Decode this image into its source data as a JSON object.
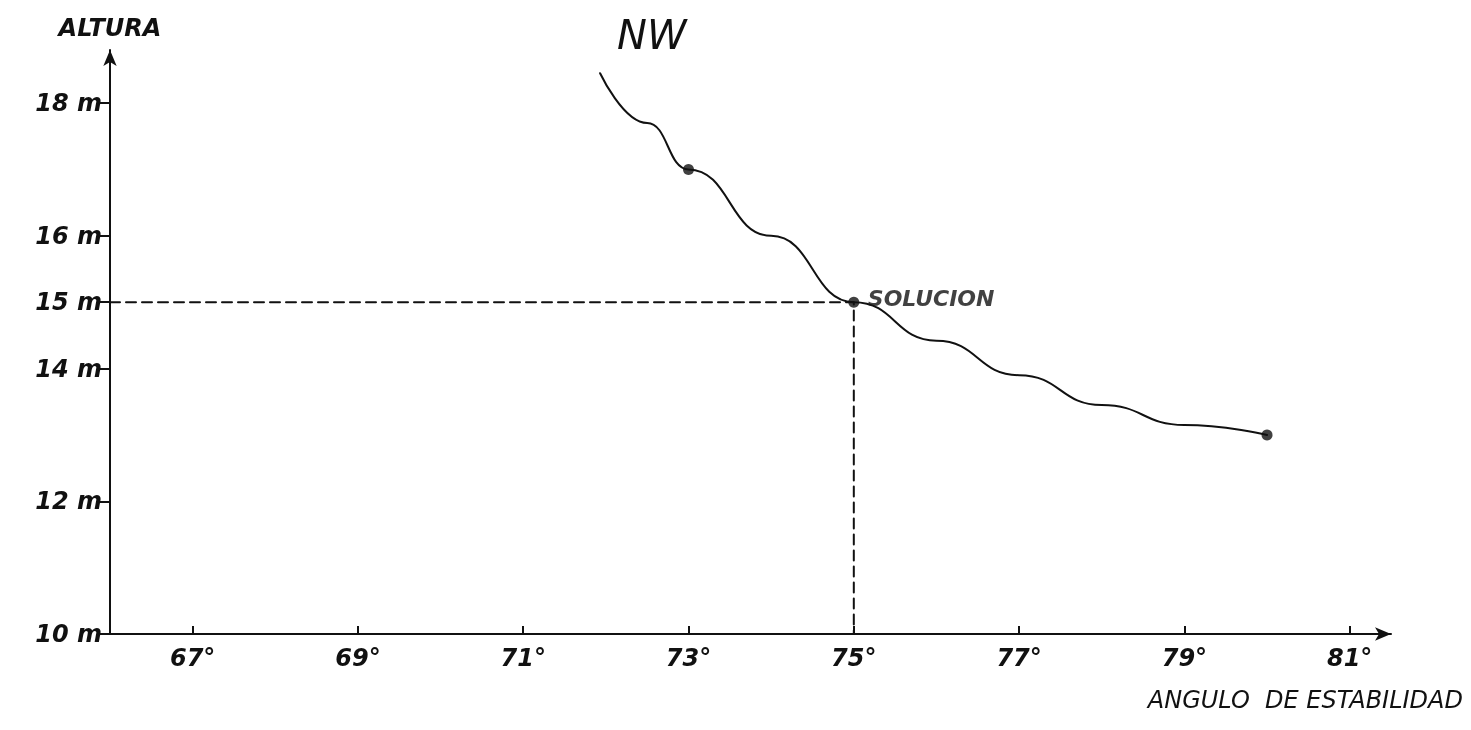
{
  "chart_data": {
    "type": "line",
    "title": "NW",
    "xlabel": "ANGULO  DE ESTABILIDAD",
    "ylabel": "ALTURA",
    "xlim": [
      66,
      81.5
    ],
    "ylim": [
      10,
      18.8
    ],
    "xticks": [
      {
        "value": 67,
        "label": "67°"
      },
      {
        "value": 69,
        "label": "69°"
      },
      {
        "value": 71,
        "label": "71°"
      },
      {
        "value": 73,
        "label": "73°"
      },
      {
        "value": 75,
        "label": "75°"
      },
      {
        "value": 77,
        "label": "77°"
      },
      {
        "value": 79,
        "label": "79°"
      },
      {
        "value": 81,
        "label": "81°"
      }
    ],
    "yticks": [
      {
        "value": 10,
        "label": "10 m"
      },
      {
        "value": 12,
        "label": "12 m"
      },
      {
        "value": 14,
        "label": "14 m"
      },
      {
        "value": 15,
        "label": "15 m"
      },
      {
        "value": 16,
        "label": "16 m"
      },
      {
        "value": 18,
        "label": "18 m"
      }
    ],
    "grid": false,
    "series": [
      {
        "color": "#111111",
        "marker": "none",
        "line_style": "solid",
        "x": [
          71.93,
          72.5,
          73,
          74,
          75,
          76,
          77,
          78,
          79,
          80
        ],
        "values": [
          18.45,
          17.7,
          17.0,
          16.0,
          15.0,
          14.42,
          13.9,
          13.45,
          13.15,
          13.0
        ]
      },
      {
        "type": "scatter",
        "color": "#111111",
        "marker": "circle",
        "x": [
          73,
          75,
          80
        ],
        "values": [
          17.0,
          15.0,
          13.0
        ]
      },
      {
        "type": "line",
        "color": "#111111",
        "marker": "none",
        "line_style": "dashed",
        "x": [
          66,
          75,
          75
        ],
        "values": [
          15,
          15,
          10
        ]
      }
    ],
    "annotations": [
      {
        "text": "SOLUCION",
        "x": 75,
        "y": 15
      }
    ]
  }
}
